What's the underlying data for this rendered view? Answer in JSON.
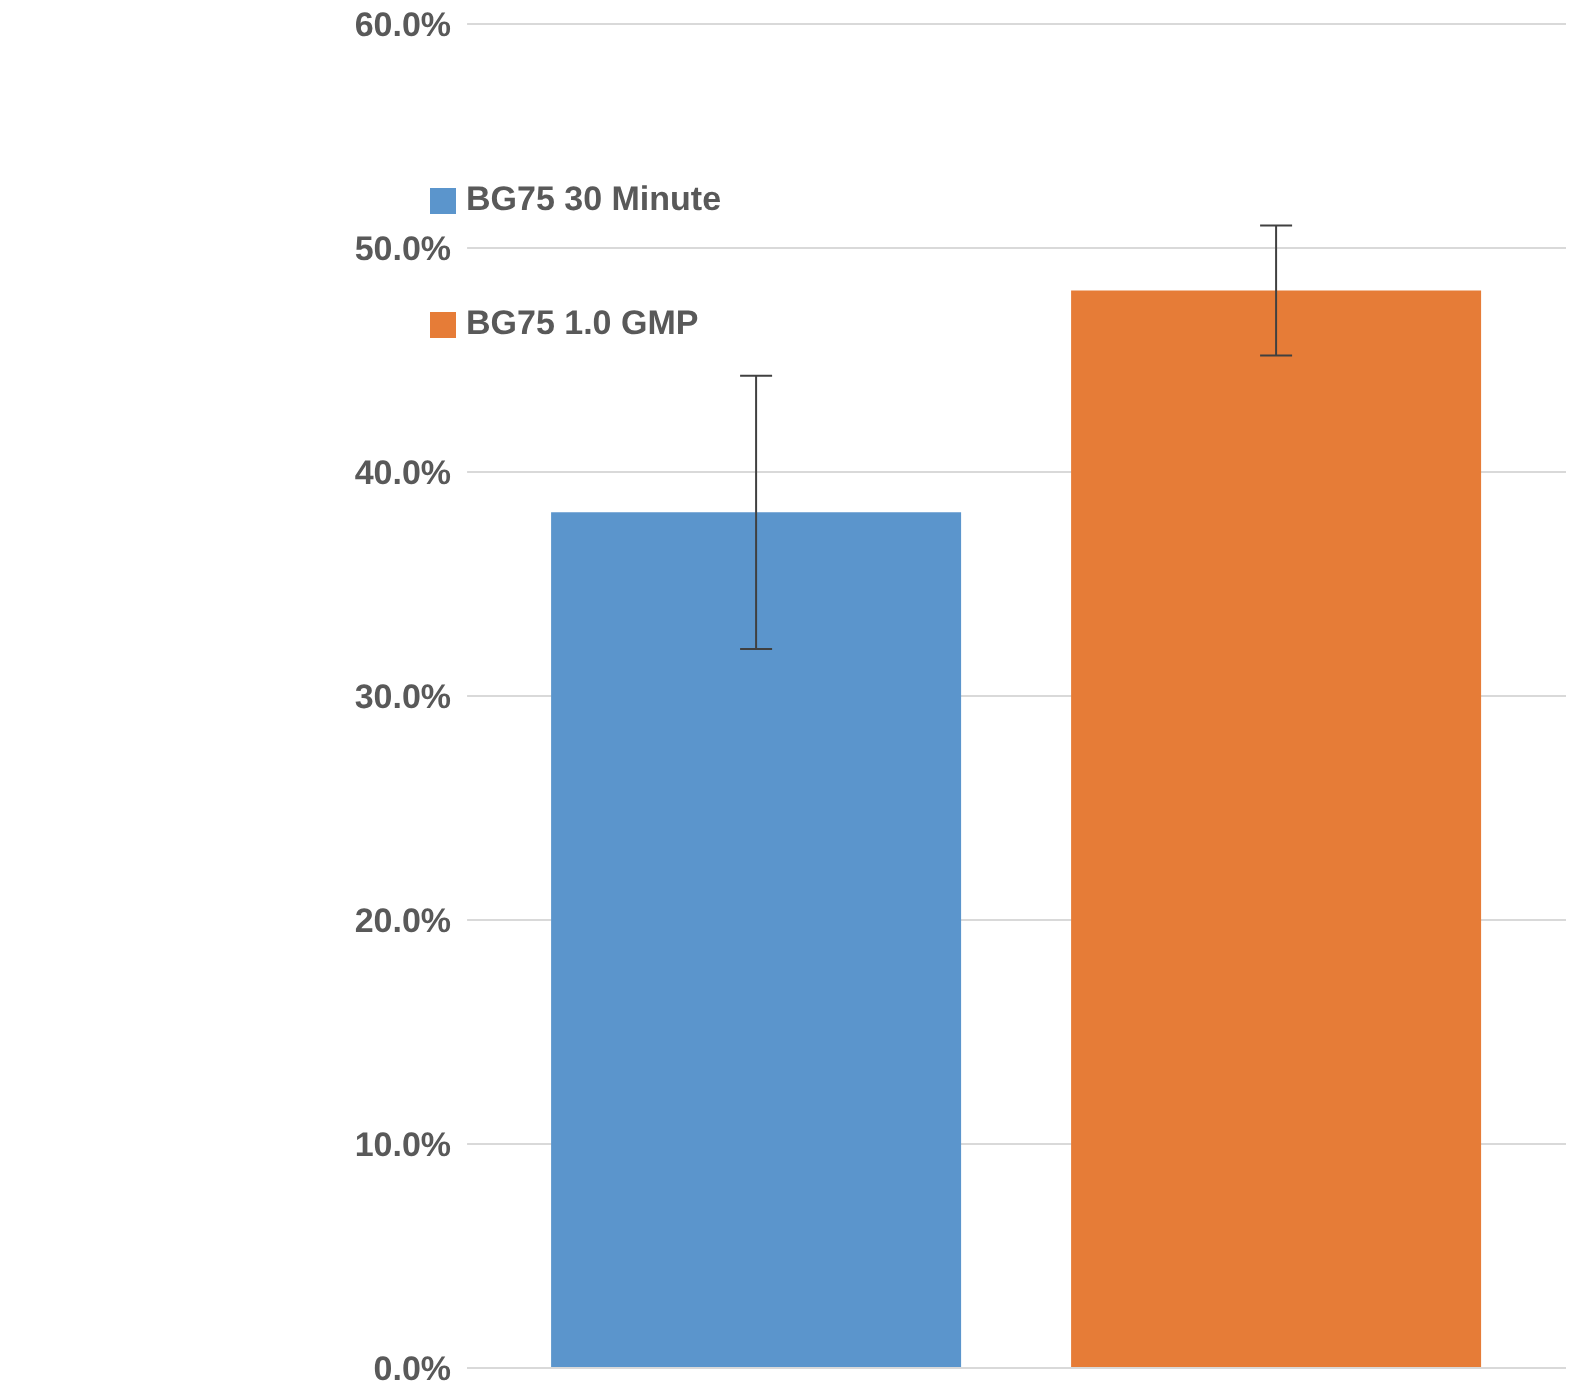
{
  "chart_data": {
    "type": "bar",
    "categories": [
      null
    ],
    "series": [
      {
        "name": "BG75 30 Minute",
        "color": "#5b95cc",
        "values": [
          38.2
        ],
        "errors": [
          [
            32.1,
            44.3
          ]
        ]
      },
      {
        "name": "BG75 1.0 GMP",
        "color": "#e67c37",
        "values": [
          48.1
        ],
        "errors": [
          [
            45.2,
            51.0
          ]
        ]
      }
    ],
    "ylim": [
      0,
      60
    ],
    "yticks": [
      {
        "value": 0,
        "label": "0.0%"
      },
      {
        "value": 10,
        "label": "10.0%"
      },
      {
        "value": 20,
        "label": "20.0%"
      },
      {
        "value": 30,
        "label": "30.0%"
      },
      {
        "value": 40,
        "label": "40.0%"
      },
      {
        "value": 50,
        "label": "50.0%"
      },
      {
        "value": 60,
        "label": "60.0%"
      }
    ],
    "grid": "y",
    "legend": "top left",
    "tick_labels": "y"
  }
}
